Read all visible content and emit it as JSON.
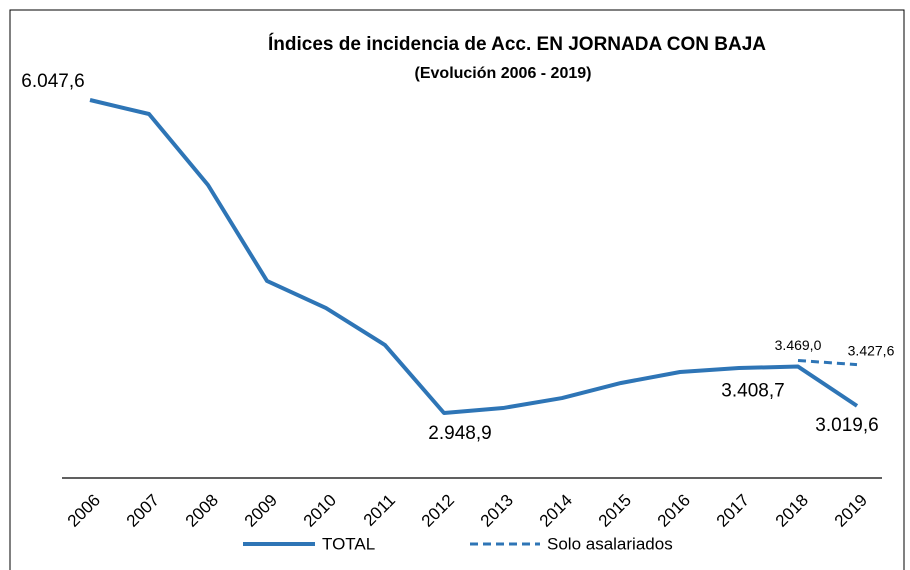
{
  "chart_data": {
    "type": "line",
    "title": "Índices de incidencia de Acc. EN JORNADA CON BAJA",
    "subtitle": "(Evolución 2006 - 2019)",
    "categories": [
      "2006",
      "2007",
      "2008",
      "2009",
      "2010",
      "2011",
      "2012",
      "2013",
      "2014",
      "2015",
      "2016",
      "2017",
      "2018",
      "2019"
    ],
    "series": [
      {
        "name": "TOTAL",
        "color": "#2e75b6",
        "values": [
          6047.6,
          5909,
          5206,
          4256,
          3988,
          3622,
          2948.9,
          2998,
          3097,
          3246,
          3355,
          3394,
          3408.7,
          3019.6
        ],
        "value_labels": [
          "6.047,6",
          null,
          null,
          null,
          null,
          null,
          "2.948,9",
          null,
          null,
          null,
          null,
          null,
          "3.408,7",
          "3.019,6"
        ]
      },
      {
        "name": "Solo asalariados",
        "color": "#2e75b6",
        "values": [
          null,
          null,
          null,
          null,
          null,
          null,
          null,
          null,
          null,
          null,
          null,
          null,
          3469.0,
          3427.6
        ],
        "value_labels": [
          null,
          null,
          null,
          null,
          null,
          null,
          null,
          null,
          null,
          null,
          null,
          null,
          "3.469,0",
          "3.427,6"
        ]
      }
    ]
  }
}
